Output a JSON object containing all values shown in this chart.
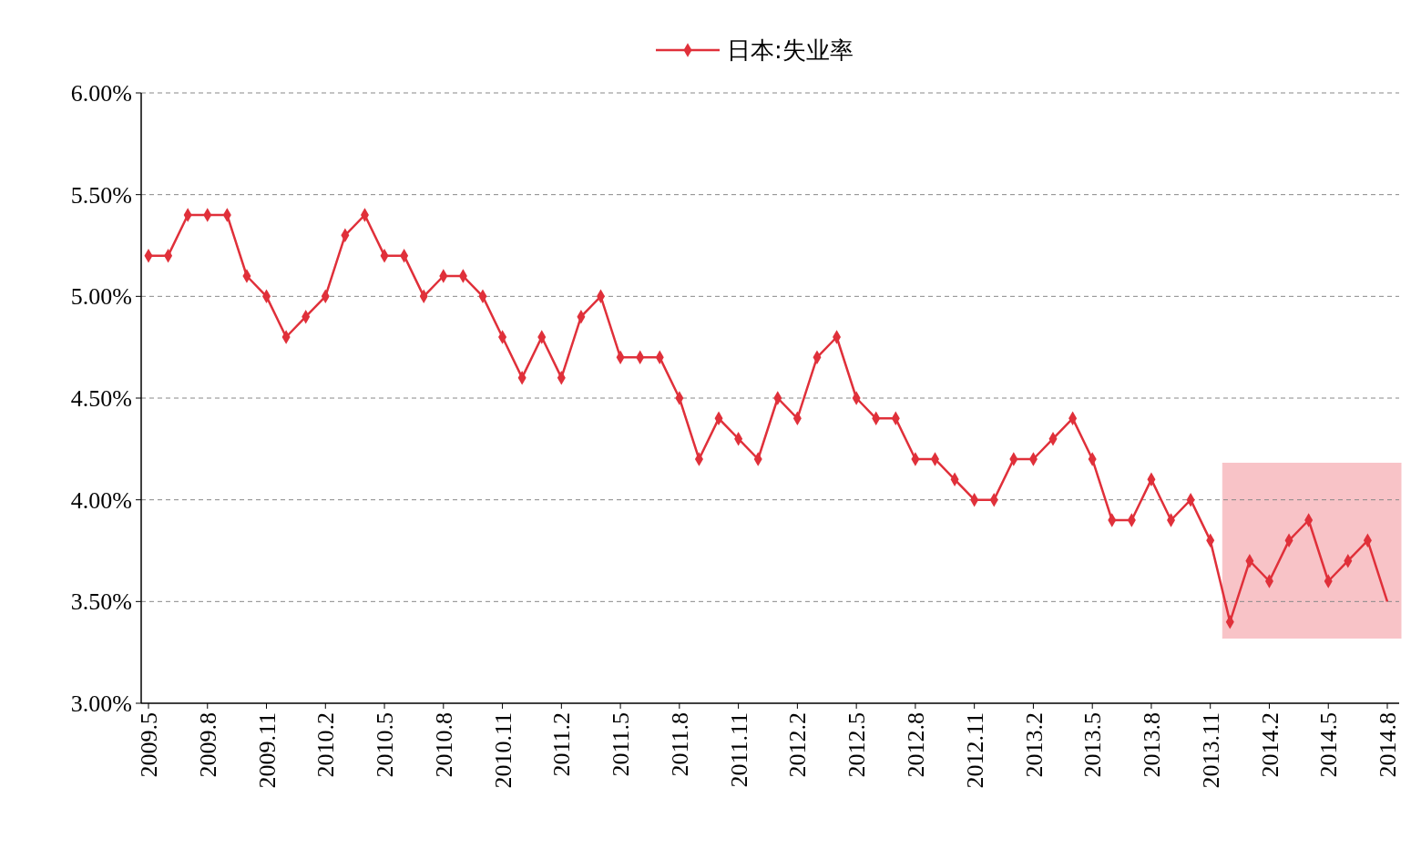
{
  "chart_data": {
    "type": "line",
    "legend": "top",
    "categories": [
      "2009.5",
      null,
      null,
      "2009.8",
      null,
      null,
      "2009.11",
      null,
      null,
      "2010.2",
      null,
      null,
      "2010.5",
      null,
      null,
      "2010.8",
      null,
      null,
      "2010.11",
      null,
      null,
      "2011.2",
      null,
      null,
      "2011.5",
      null,
      null,
      "2011.8",
      null,
      null,
      "2011.11",
      null,
      null,
      "2012.2",
      null,
      null,
      "2012.5",
      null,
      null,
      "2012.8",
      null,
      null,
      "2012.11",
      null,
      null,
      "2013.2",
      null,
      null,
      "2013.5",
      null,
      null,
      "2013.8",
      null,
      null,
      "2013.11",
      null,
      null,
      "2014.2",
      null,
      null,
      "2014.5",
      null,
      null,
      "2014.8"
    ],
    "series": [
      {
        "name": "日本:失业率",
        "color": "#e0303a",
        "marker": "diamond",
        "values": [
          5.2,
          5.2,
          5.4,
          5.4,
          5.4,
          5.1,
          5.0,
          4.8,
          4.9,
          5.0,
          5.3,
          5.4,
          5.2,
          5.2,
          5.0,
          5.1,
          5.1,
          5.0,
          4.8,
          4.6,
          4.8,
          4.6,
          4.9,
          5.0,
          4.7,
          4.7,
          4.7,
          4.5,
          4.2,
          4.4,
          4.3,
          4.2,
          4.5,
          4.4,
          4.7,
          4.8,
          4.5,
          4.4,
          4.4,
          4.2,
          4.2,
          4.1,
          4.0,
          4.0,
          4.2,
          4.2,
          4.3,
          4.4,
          4.2,
          3.9,
          3.9,
          4.1,
          3.9,
          4.0,
          3.8,
          3.4,
          3.7,
          3.6,
          3.8,
          3.9,
          3.6,
          3.7,
          3.8,
          3.5
        ]
      }
    ],
    "ylim": [
      3,
      6
    ],
    "yticks": [
      {
        "value": 3,
        "label": "3.00%"
      },
      {
        "value": 3.5,
        "label": "3.50%"
      },
      {
        "value": 4,
        "label": "4.00%"
      },
      {
        "value": 4.5,
        "label": "4.50%"
      },
      {
        "value": 5,
        "label": "5.00%"
      },
      {
        "value": 5.5,
        "label": "5.50%"
      },
      {
        "value": 6,
        "label": "6.00%"
      }
    ],
    "grid": "y",
    "bands": [
      {
        "axis": "y",
        "from": 3.32,
        "to": 4.18,
        "color": "#f7b9be"
      }
    ]
  }
}
